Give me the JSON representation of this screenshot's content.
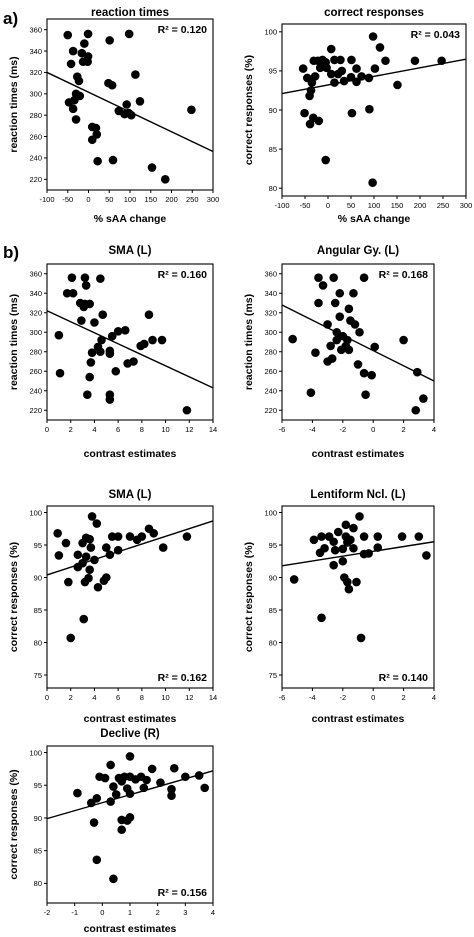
{
  "panel_labels": {
    "a": "a)",
    "b": "b)"
  },
  "chart_data": [
    {
      "id": "rt-saa",
      "type": "scatter",
      "title": "reaction times",
      "xlabel": "% sAA change",
      "ylabel": "reaction times (ms)",
      "xlim": [
        -100,
        300
      ],
      "ylim": [
        210,
        370
      ],
      "xticks": [
        -100,
        -50,
        0,
        50,
        100,
        150,
        200,
        250,
        300
      ],
      "yticks": [
        220,
        240,
        260,
        280,
        300,
        320,
        340,
        360
      ],
      "annotation": "R² = 0.120",
      "annotation_position": "top-right",
      "trendline": {
        "x": [
          -100,
          300
        ],
        "y": [
          320,
          246
        ]
      },
      "points": [
        [
          -50,
          355
        ],
        [
          -1,
          356
        ],
        [
          98,
          356
        ],
        [
          -10,
          347
        ],
        [
          51,
          350
        ],
        [
          -37,
          340
        ],
        [
          -16,
          338
        ],
        [
          -1,
          335
        ],
        [
          -42,
          328
        ],
        [
          -13,
          330
        ],
        [
          -2,
          330
        ],
        [
          -27,
          316
        ],
        [
          -23,
          312
        ],
        [
          -30,
          300
        ],
        [
          -21,
          298
        ],
        [
          48,
          310
        ],
        [
          57,
          308
        ],
        [
          -47,
          292
        ],
        [
          -34,
          294
        ],
        [
          -37,
          286
        ],
        [
          113,
          318
        ],
        [
          124,
          293
        ],
        [
          92,
          290
        ],
        [
          73,
          284
        ],
        [
          97,
          282
        ],
        [
          87,
          281
        ],
        [
          103,
          280
        ],
        [
          9,
          269
        ],
        [
          18,
          268
        ],
        [
          -30,
          276
        ],
        [
          9,
          257
        ],
        [
          20,
          262
        ],
        [
          59,
          238
        ],
        [
          22,
          237
        ],
        [
          153,
          231
        ],
        [
          185,
          220
        ],
        [
          248,
          285
        ]
      ]
    },
    {
      "id": "cr-saa",
      "type": "scatter",
      "title": "correct responses",
      "xlabel": "% sAA change",
      "ylabel": "correct responses (%)",
      "xlim": [
        -100,
        300
      ],
      "ylim": [
        79,
        101
      ],
      "xticks": [
        -100,
        -50,
        0,
        50,
        100,
        150,
        200,
        250,
        300
      ],
      "yticks": [
        80,
        85,
        90,
        95,
        100
      ],
      "annotation": "R² = 0.043",
      "annotation_position": "top-right",
      "trendline": {
        "x": [
          -100,
          300
        ],
        "y": [
          92.1,
          96.5
        ]
      },
      "points": [
        [
          98,
          99.4
        ],
        [
          113,
          98.0
        ],
        [
          7,
          97.8
        ],
        [
          -31,
          96.3
        ],
        [
          -22,
          96.3
        ],
        [
          -12,
          96.4
        ],
        [
          -5,
          96.1
        ],
        [
          14,
          96.4
        ],
        [
          27,
          96.4
        ],
        [
          51,
          96.4
        ],
        [
          125,
          96.3
        ],
        [
          189,
          96.3
        ],
        [
          247,
          96.3
        ],
        [
          -54,
          95.3
        ],
        [
          -17,
          95.4
        ],
        [
          -3,
          95.4
        ],
        [
          62,
          95.3
        ],
        [
          102,
          95.3
        ],
        [
          30,
          95.0
        ],
        [
          7,
          94.6
        ],
        [
          22,
          94.6
        ],
        [
          -45,
          94.1
        ],
        [
          -28,
          94.3
        ],
        [
          50,
          94.2
        ],
        [
          73,
          94.3
        ],
        [
          89,
          94.1
        ],
        [
          -35,
          93.5
        ],
        [
          14,
          93.5
        ],
        [
          35,
          93.7
        ],
        [
          62,
          93.6
        ],
        [
          151,
          93.2
        ],
        [
          -37,
          92.5
        ],
        [
          -40,
          91.8
        ],
        [
          -20,
          88.6
        ],
        [
          -32,
          89.0
        ],
        [
          -51,
          89.6
        ],
        [
          -39,
          88.2
        ],
        [
          52,
          89.6
        ],
        [
          90,
          90.1
        ],
        [
          -5,
          83.6
        ],
        [
          97,
          80.7
        ]
      ]
    },
    {
      "id": "rt-sma",
      "type": "scatter",
      "title": "SMA (L)",
      "xlabel": "contrast estimates",
      "ylabel": "reaction times (ms)",
      "xlim": [
        0,
        14
      ],
      "ylim": [
        210,
        370
      ],
      "xticks": [
        0,
        2,
        4,
        6,
        8,
        10,
        12,
        14
      ],
      "yticks": [
        220,
        240,
        260,
        280,
        300,
        320,
        340,
        360
      ],
      "annotation": "R² = 0.160",
      "annotation_position": "top-right",
      "trendline": {
        "x": [
          0,
          14
        ],
        "y": [
          322,
          243
        ]
      },
      "points": [
        [
          2.1,
          356
        ],
        [
          3.2,
          356
        ],
        [
          4.5,
          355
        ],
        [
          3.3,
          348
        ],
        [
          1.7,
          340
        ],
        [
          2.2,
          340
        ],
        [
          2.8,
          330
        ],
        [
          3.2,
          329
        ],
        [
          3.6,
          329
        ],
        [
          3.1,
          326
        ],
        [
          4.7,
          318
        ],
        [
          2.9,
          312
        ],
        [
          8.6,
          318
        ],
        [
          4.0,
          310
        ],
        [
          1.0,
          297
        ],
        [
          5.5,
          296
        ],
        [
          6.0,
          301
        ],
        [
          6.6,
          302
        ],
        [
          7.9,
          286
        ],
        [
          8.2,
          288
        ],
        [
          8.9,
          292
        ],
        [
          9.7,
          292
        ],
        [
          4.6,
          292
        ],
        [
          4.3,
          285
        ],
        [
          3.8,
          279
        ],
        [
          4.5,
          280
        ],
        [
          5.3,
          281
        ],
        [
          5.3,
          278
        ],
        [
          6.8,
          268
        ],
        [
          7.3,
          270
        ],
        [
          3.7,
          269
        ],
        [
          5.8,
          260
        ],
        [
          3.6,
          254
        ],
        [
          5.3,
          236
        ],
        [
          5.3,
          231
        ],
        [
          1.1,
          258
        ],
        [
          3.4,
          236
        ],
        [
          11.8,
          220
        ]
      ]
    },
    {
      "id": "rt-angular",
      "type": "scatter",
      "title": "Angular Gy. (L)",
      "xlabel": "contrast estimates",
      "ylabel": "reaction times (ms)",
      "xlim": [
        -6,
        4
      ],
      "ylim": [
        210,
        370
      ],
      "xticks": [
        -6,
        -4,
        -2,
        0,
        2,
        4
      ],
      "yticks": [
        220,
        240,
        260,
        280,
        300,
        320,
        340,
        360
      ],
      "annotation": "R² = 0.168",
      "annotation_position": "top-right",
      "trendline": {
        "x": [
          -6,
          4
        ],
        "y": [
          328,
          250
        ]
      },
      "points": [
        [
          -3.6,
          356
        ],
        [
          -2.6,
          356
        ],
        [
          -0.6,
          356
        ],
        [
          -3.3,
          348
        ],
        [
          -2.2,
          340
        ],
        [
          -1.3,
          340
        ],
        [
          -3.6,
          330
        ],
        [
          -2.5,
          330
        ],
        [
          -1.6,
          324
        ],
        [
          -2.2,
          316
        ],
        [
          -1.5,
          312
        ],
        [
          -3.0,
          308
        ],
        [
          -1.2,
          308
        ],
        [
          -2.4,
          300
        ],
        [
          -0.9,
          300
        ],
        [
          -2.0,
          296
        ],
        [
          -2.4,
          292
        ],
        [
          -1.7,
          292
        ],
        [
          -1.8,
          286
        ],
        [
          -2.1,
          282
        ],
        [
          -1.6,
          282
        ],
        [
          -2.8,
          286
        ],
        [
          -3.8,
          279
        ],
        [
          -2.7,
          273
        ],
        [
          -1.0,
          267
        ],
        [
          -0.6,
          258
        ],
        [
          -0.1,
          256
        ],
        [
          -5.3,
          293
        ],
        [
          -4.1,
          238
        ],
        [
          -0.5,
          236
        ],
        [
          0.1,
          285
        ],
        [
          2.0,
          292
        ],
        [
          2.9,
          259
        ],
        [
          3.3,
          232
        ],
        [
          2.8,
          220
        ],
        [
          -3.0,
          270
        ]
      ]
    },
    {
      "id": "cr-sma",
      "type": "scatter",
      "title": "SMA (L)",
      "xlabel": "contrast estimates",
      "ylabel": "correct responses (%)",
      "xlim": [
        0,
        14
      ],
      "ylim": [
        73,
        101
      ],
      "xticks": [
        0,
        2,
        4,
        6,
        8,
        10,
        12,
        14
      ],
      "yticks": [
        75,
        80,
        85,
        90,
        95,
        100
      ],
      "annotation": "R² = 0.162",
      "annotation_position": "bottom-right",
      "trendline": {
        "x": [
          0,
          14
        ],
        "y": [
          90.4,
          98.7
        ]
      },
      "points": [
        [
          3.8,
          99.4
        ],
        [
          4.2,
          98.3
        ],
        [
          0.9,
          96.8
        ],
        [
          3.3,
          96.1
        ],
        [
          3.6,
          95.9
        ],
        [
          5.5,
          96.3
        ],
        [
          6.0,
          96.3
        ],
        [
          7.0,
          96.3
        ],
        [
          8.0,
          96.3
        ],
        [
          8.6,
          97.5
        ],
        [
          9.0,
          96.8
        ],
        [
          11.8,
          96.3
        ],
        [
          1.6,
          95.3
        ],
        [
          3.0,
          95.3
        ],
        [
          3.7,
          94.6
        ],
        [
          5.0,
          94.6
        ],
        [
          9.8,
          94.6
        ],
        [
          1.0,
          93.4
        ],
        [
          2.6,
          93.5
        ],
        [
          3.3,
          93.2
        ],
        [
          4.0,
          92.7
        ],
        [
          5.3,
          93.5
        ],
        [
          2.6,
          91.6
        ],
        [
          3.0,
          92.2
        ],
        [
          3.6,
          91.2
        ],
        [
          1.8,
          89.3
        ],
        [
          3.2,
          89.3
        ],
        [
          4.8,
          89.5
        ],
        [
          4.3,
          88.5
        ],
        [
          5.0,
          90.0
        ],
        [
          3.5,
          89.9
        ],
        [
          2.0,
          80.7
        ],
        [
          3.1,
          83.6
        ],
        [
          6.0,
          94.2
        ],
        [
          7.6,
          95.8
        ]
      ]
    },
    {
      "id": "cr-lentiform",
      "type": "scatter",
      "title": "Lentiform Ncl. (L)",
      "xlabel": "contrast estimates",
      "ylabel": "correct responses (%)",
      "xlim": [
        -6,
        4
      ],
      "ylim": [
        73,
        101
      ],
      "xticks": [
        -6,
        -4,
        -2,
        0,
        2,
        4
      ],
      "yticks": [
        75,
        80,
        85,
        90,
        95,
        100
      ],
      "annotation": "R² = 0.140",
      "annotation_position": "bottom-right",
      "trendline": {
        "x": [
          -6,
          4
        ],
        "y": [
          91.8,
          95.5
        ]
      },
      "points": [
        [
          -0.9,
          99.4
        ],
        [
          -1.8,
          98.1
        ],
        [
          -1.3,
          97.6
        ],
        [
          -2.3,
          97.0
        ],
        [
          -3.4,
          96.3
        ],
        [
          -2.9,
          96.3
        ],
        [
          -1.8,
          96.3
        ],
        [
          -0.6,
          96.3
        ],
        [
          0.3,
          96.3
        ],
        [
          1.9,
          96.3
        ],
        [
          3.0,
          96.3
        ],
        [
          -3.9,
          95.8
        ],
        [
          -2.6,
          95.5
        ],
        [
          -1.7,
          95.4
        ],
        [
          -1.5,
          95.8
        ],
        [
          -2.5,
          94.2
        ],
        [
          -2.0,
          94.4
        ],
        [
          -1.3,
          94.5
        ],
        [
          -3.2,
          94.5
        ],
        [
          -3.5,
          93.8
        ],
        [
          -0.6,
          93.6
        ],
        [
          -0.3,
          93.7
        ],
        [
          3.5,
          93.4
        ],
        [
          0.3,
          94.6
        ],
        [
          -2.0,
          92.5
        ],
        [
          -2.6,
          91.9
        ],
        [
          -1.9,
          90.0
        ],
        [
          -1.7,
          89.3
        ],
        [
          -1.1,
          89.3
        ],
        [
          -1.6,
          88.2
        ],
        [
          -5.2,
          89.7
        ],
        [
          -3.4,
          83.8
        ],
        [
          -0.8,
          80.7
        ]
      ]
    },
    {
      "id": "cr-declive",
      "type": "scatter",
      "title": "Declive (R)",
      "xlabel": "contrast estimates",
      "ylabel": "correct responses (%)",
      "xlim": [
        -2,
        4
      ],
      "ylim": [
        77,
        101
      ],
      "xticks": [
        -2,
        -1,
        0,
        1,
        2,
        3,
        4
      ],
      "yticks": [
        80,
        85,
        90,
        95,
        100
      ],
      "annotation": "R² = 0.156",
      "annotation_position": "bottom-right",
      "trendline": {
        "x": [
          -2,
          4
        ],
        "y": [
          89.9,
          97.2
        ]
      },
      "points": [
        [
          1.0,
          99.4
        ],
        [
          0.3,
          98.1
        ],
        [
          1.8,
          97.5
        ],
        [
          2.6,
          97.6
        ],
        [
          -0.1,
          96.3
        ],
        [
          0.1,
          96.1
        ],
        [
          0.6,
          96.1
        ],
        [
          0.8,
          96.3
        ],
        [
          1.0,
          96.3
        ],
        [
          1.4,
          96.3
        ],
        [
          3.0,
          96.3
        ],
        [
          3.5,
          96.5
        ],
        [
          0.7,
          95.6
        ],
        [
          1.2,
          95.9
        ],
        [
          1.6,
          95.8
        ],
        [
          2.1,
          95.4
        ],
        [
          3.7,
          94.6
        ],
        [
          0.4,
          94.8
        ],
        [
          0.9,
          94.5
        ],
        [
          1.5,
          94.6
        ],
        [
          2.5,
          94.4
        ],
        [
          -0.9,
          93.8
        ],
        [
          0.5,
          93.6
        ],
        [
          1.0,
          93.7
        ],
        [
          2.5,
          93.4
        ],
        [
          -0.4,
          92.3
        ],
        [
          -0.2,
          93.0
        ],
        [
          0.3,
          92.5
        ],
        [
          -0.3,
          89.3
        ],
        [
          0.7,
          89.7
        ],
        [
          0.7,
          88.2
        ],
        [
          0.9,
          89.6
        ],
        [
          1.0,
          90.1
        ],
        [
          -0.2,
          83.6
        ],
        [
          0.4,
          80.7
        ]
      ]
    }
  ]
}
